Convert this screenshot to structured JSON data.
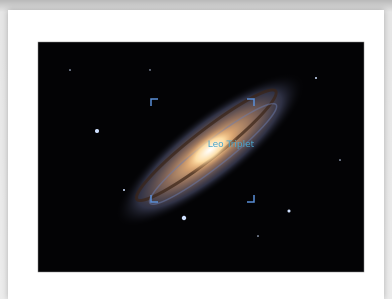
{
  "image": {
    "label": "Leo Triplet"
  }
}
